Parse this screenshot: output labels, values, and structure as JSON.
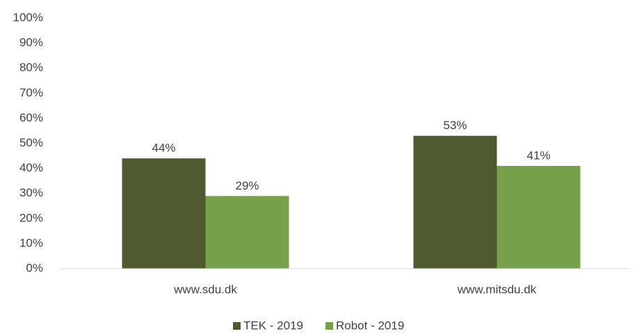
{
  "chart_data": {
    "type": "bar",
    "categories": [
      "www.sdu.dk",
      "www.mitsdu.dk"
    ],
    "series": [
      {
        "name": "TEK - 2019",
        "color": "#4e5b31",
        "values": [
          44,
          53
        ],
        "value_labels": [
          "44%",
          "53%"
        ]
      },
      {
        "name": "Robot - 2019",
        "color": "#77a04a",
        "values": [
          29,
          41
        ],
        "value_labels": [
          "29%",
          "41%"
        ]
      }
    ],
    "ylim": [
      0,
      100
    ],
    "yticks": [
      {
        "value": 0,
        "label": "0%"
      },
      {
        "value": 10,
        "label": "10%"
      },
      {
        "value": 20,
        "label": "20%"
      },
      {
        "value": 30,
        "label": "30%"
      },
      {
        "value": 40,
        "label": "40%"
      },
      {
        "value": 50,
        "label": "50%"
      },
      {
        "value": 60,
        "label": "60%"
      },
      {
        "value": 70,
        "label": "70%"
      },
      {
        "value": 80,
        "label": "80%"
      },
      {
        "value": 90,
        "label": "90%"
      },
      {
        "value": 100,
        "label": "100%"
      }
    ],
    "grid": false,
    "legend": "bottom"
  }
}
